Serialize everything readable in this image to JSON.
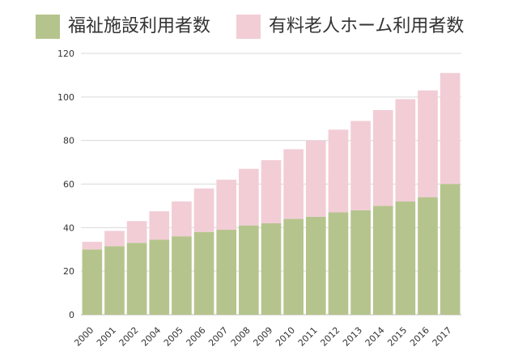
{
  "chart_data": {
    "type": "bar",
    "stacked": true,
    "categories": [
      "2000",
      "2001",
      "2002",
      "2004",
      "2005",
      "2006",
      "2007",
      "2008",
      "2009",
      "2010",
      "2011",
      "2012",
      "2013",
      "2014",
      "2015",
      "2016",
      "2017"
    ],
    "series": [
      {
        "name": "福祉施設利用者数",
        "color": "#b5c48c",
        "values": [
          30,
          31.5,
          33,
          34.5,
          36,
          38,
          39,
          41,
          42,
          44,
          45,
          47,
          48,
          50,
          52,
          54,
          60
        ]
      },
      {
        "name": "有料老人ホーム利用者数",
        "color": "#f2cdd6",
        "values": [
          3.5,
          7,
          10,
          13,
          16,
          20,
          23,
          26,
          29,
          32,
          35,
          38,
          41,
          44,
          47,
          49,
          51
        ]
      }
    ],
    "title": "",
    "xlabel": "",
    "ylabel": "",
    "ylim": [
      0,
      120
    ],
    "yticks": [
      0,
      20,
      40,
      60,
      80,
      100,
      120
    ],
    "grid": true,
    "legend_position": "top"
  }
}
